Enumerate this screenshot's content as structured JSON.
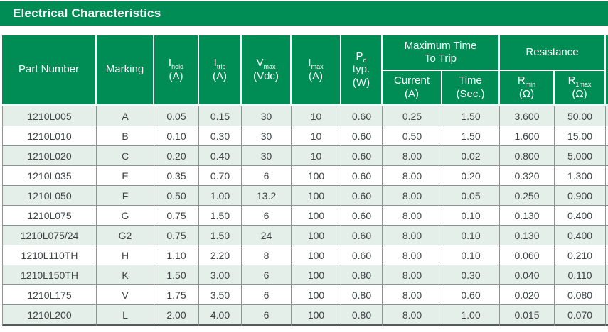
{
  "title": "Electrical Characteristics",
  "colors": {
    "header_green": "#008C55",
    "row_stripe_mint": "#E3EFE8",
    "cell_border_gray": "#8F9492",
    "bottom_rule_dark": "#545A58",
    "text_dark": "#3F4345",
    "header_text": "#FFFFFF"
  },
  "table": {
    "header": {
      "part_number": "Part Number",
      "marking": "Marking",
      "i_hold": {
        "sym": "I",
        "sub": "hold",
        "unit": "(A)"
      },
      "i_trip": {
        "sym": "I",
        "sub": "trip",
        "unit": "(A)"
      },
      "v_max": {
        "sym": "V",
        "sub": "max",
        "unit": "(Vdc)"
      },
      "i_max": {
        "sym": "I",
        "sub": "max",
        "unit": "(A)"
      },
      "p_d": {
        "sym": "P",
        "sub": "d",
        "line2": "typ.",
        "unit": "(W)"
      },
      "max_time_to_trip": {
        "line1": "Maximum Time",
        "line2": "To Trip"
      },
      "trip_current": {
        "label": "Current",
        "unit": "(A)"
      },
      "trip_time": {
        "label": "Time",
        "unit": "(Sec.)"
      },
      "resistance": {
        "label": "Resistance"
      },
      "r_min": {
        "sym": "R",
        "sub": "min",
        "unit": "(Ω)"
      },
      "r_1max": {
        "sym": "R",
        "sub": "1max",
        "unit": "(Ω)"
      }
    },
    "column_ids": [
      "part_number",
      "marking",
      "i_hold_a",
      "i_trip_a",
      "v_max_vdc",
      "i_max_a",
      "p_d_typ_w",
      "trip_current_a",
      "trip_time_sec",
      "r_min_ohm",
      "r_1max_ohm"
    ],
    "rows": [
      [
        "1210L005",
        "A",
        "0.05",
        "0.15",
        "30",
        "10",
        "0.60",
        "0.25",
        "1.50",
        "3.600",
        "50.00"
      ],
      [
        "1210L010",
        "B",
        "0.10",
        "0.30",
        "30",
        "10",
        "0.60",
        "0.50",
        "1.50",
        "1.600",
        "15.00"
      ],
      [
        "1210L020",
        "C",
        "0.20",
        "0.40",
        "30",
        "10",
        "0.60",
        "8.00",
        "0.02",
        "0.800",
        "5.000"
      ],
      [
        "1210L035",
        "E",
        "0.35",
        "0.70",
        "6",
        "100",
        "0.60",
        "8.00",
        "0.20",
        "0.320",
        "1.300"
      ],
      [
        "1210L050",
        "F",
        "0.50",
        "1.00",
        "13.2",
        "100",
        "0.60",
        "8.00",
        "0.05",
        "0.250",
        "0.900"
      ],
      [
        "1210L075",
        "G",
        "0.75",
        "1.50",
        "6",
        "100",
        "0.60",
        "8.00",
        "0.10",
        "0.130",
        "0.400"
      ],
      [
        "1210L075/24",
        "G2",
        "0.75",
        "1.50",
        "24",
        "100",
        "0.60",
        "8.00",
        "0.10",
        "0.130",
        "0.400"
      ],
      [
        "1210L110TH",
        "H",
        "1.10",
        "2.20",
        "8",
        "100",
        "0.60",
        "8.00",
        "0.10",
        "0.060",
        "0.210"
      ],
      [
        "1210L150TH",
        "K",
        "1.50",
        "3.00",
        "6",
        "100",
        "0.80",
        "8.00",
        "0.30",
        "0.040",
        "0.110"
      ],
      [
        "1210L175",
        "V",
        "1.75",
        "3.50",
        "6",
        "100",
        "0.80",
        "8.00",
        "0.60",
        "0.020",
        "0.080"
      ],
      [
        "1210L200",
        "L",
        "2.00",
        "4.00",
        "6",
        "100",
        "0.80",
        "8.00",
        "1.00",
        "0.015",
        "0.070"
      ]
    ]
  }
}
